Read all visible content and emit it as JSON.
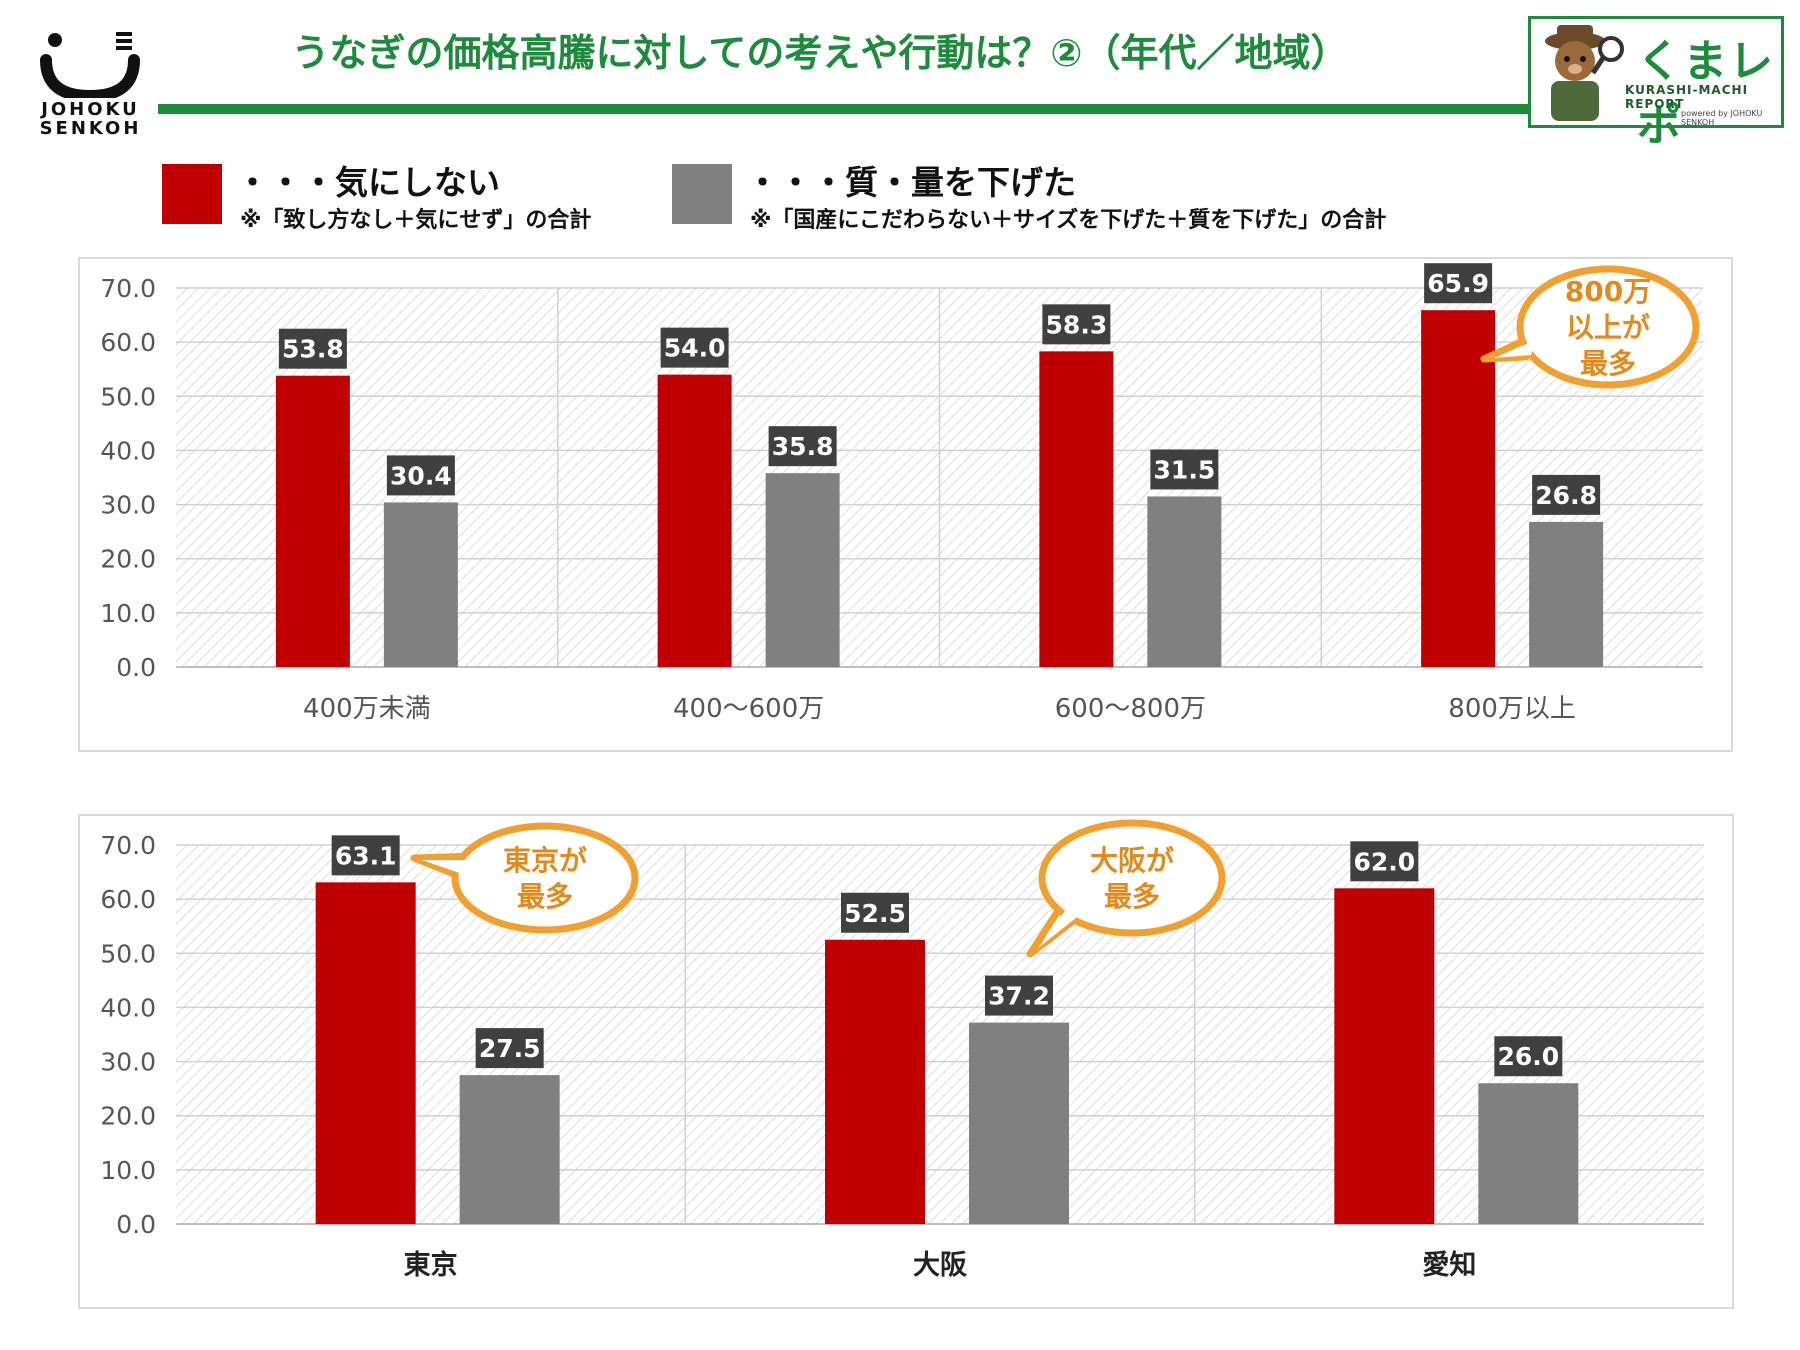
{
  "header": {
    "title": "うなぎの価格高騰に対しての考えや行動は？②（年代／地域）",
    "logo_left": {
      "icon": "johoku-senkoh-logo-icon",
      "line1": "JOHOKU",
      "line2": "SENKOH"
    },
    "badge": {
      "name": "くまレポ",
      "subtitle": "KURASHI-MACHI REPORT",
      "powered": "powered by JOHOKU SENKOH",
      "icon": "bear-detective-icon"
    }
  },
  "legend": [
    {
      "label": "・・・気にしない",
      "note": "※「致し方なし＋気にせず」の合計",
      "color": "#c00000"
    },
    {
      "label": "・・・質・量を下げた",
      "note": "※「国産にこだわらない＋サイズを下げた＋質を下げた」の合計",
      "color": "#808080"
    }
  ],
  "colors": {
    "red": "#c00000",
    "gray": "#808080",
    "label_bg": "#404040",
    "callout": "#f0a030",
    "callout_text": "#e08a1e"
  },
  "chart_data": [
    {
      "type": "bar",
      "categories": [
        "400万未満",
        "400〜600万",
        "600〜800万",
        "800万以上"
      ],
      "series": [
        {
          "name": "気にしない",
          "values": [
            53.8,
            54.0,
            58.3,
            65.9
          ],
          "labels": [
            "53.8",
            "54.0",
            "58.3",
            "65.9"
          ]
        },
        {
          "name": "質・量を下げた",
          "values": [
            30.4,
            35.8,
            31.5,
            26.8
          ],
          "labels": [
            "30.4",
            "35.8",
            "31.5",
            "26.8"
          ]
        }
      ],
      "ylim": [
        0,
        70
      ],
      "yticks": [
        "0.0",
        "10.0",
        "20.0",
        "30.0",
        "40.0",
        "50.0",
        "60.0",
        "70.0"
      ],
      "grid": true,
      "callout": {
        "text_lines": [
          "800万",
          "以上が",
          "最多"
        ]
      }
    },
    {
      "type": "bar",
      "categories": [
        "東京",
        "大阪",
        "愛知"
      ],
      "series": [
        {
          "name": "気にしない",
          "values": [
            63.1,
            52.5,
            62.0
          ],
          "labels": [
            "63.1",
            "52.5",
            "62.0"
          ]
        },
        {
          "name": "質・量を下げた",
          "values": [
            27.5,
            37.2,
            26.0
          ],
          "labels": [
            "27.5",
            "37.2",
            "26.0"
          ]
        }
      ],
      "ylim": [
        0,
        70
      ],
      "yticks": [
        "0.0",
        "10.0",
        "20.0",
        "30.0",
        "40.0",
        "50.0",
        "60.0",
        "70.0"
      ],
      "grid": true,
      "callouts": [
        {
          "text_lines": [
            "東京が",
            "最多"
          ]
        },
        {
          "text_lines": [
            "大阪が",
            "最多"
          ]
        }
      ]
    }
  ]
}
